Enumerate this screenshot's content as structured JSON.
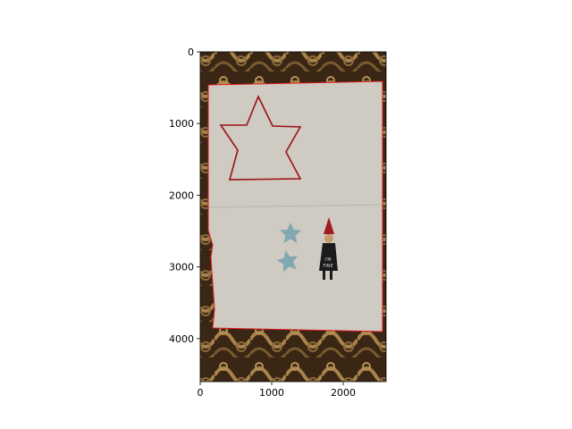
{
  "figure": {
    "background": "#ffffff"
  },
  "image": {
    "subject": "photo-of-paper-sheet-on-patterned-carpet",
    "colors": {
      "carpet_dark": "#3a2614",
      "carpet_light": "#a8834b",
      "paper": "#cfcac2",
      "contour": "#e0191e",
      "star_outline": "#9b1214",
      "small_stars": "#7fa8b0",
      "figurine": "#1b1a1c",
      "figurine_hat": "#a01a22"
    }
  },
  "axes": {
    "xlim": [
      0,
      2600
    ],
    "ylim": [
      4600,
      0
    ],
    "x_ticks": [
      {
        "value": 0,
        "label": "0"
      },
      {
        "value": 1000,
        "label": "1000"
      },
      {
        "value": 2000,
        "label": "2000"
      }
    ],
    "y_ticks": [
      {
        "value": 0,
        "label": "0"
      },
      {
        "value": 1000,
        "label": "1000"
      },
      {
        "value": 2000,
        "label": "2000"
      },
      {
        "value": 3000,
        "label": "3000"
      },
      {
        "value": 4000,
        "label": "4000"
      }
    ]
  }
}
